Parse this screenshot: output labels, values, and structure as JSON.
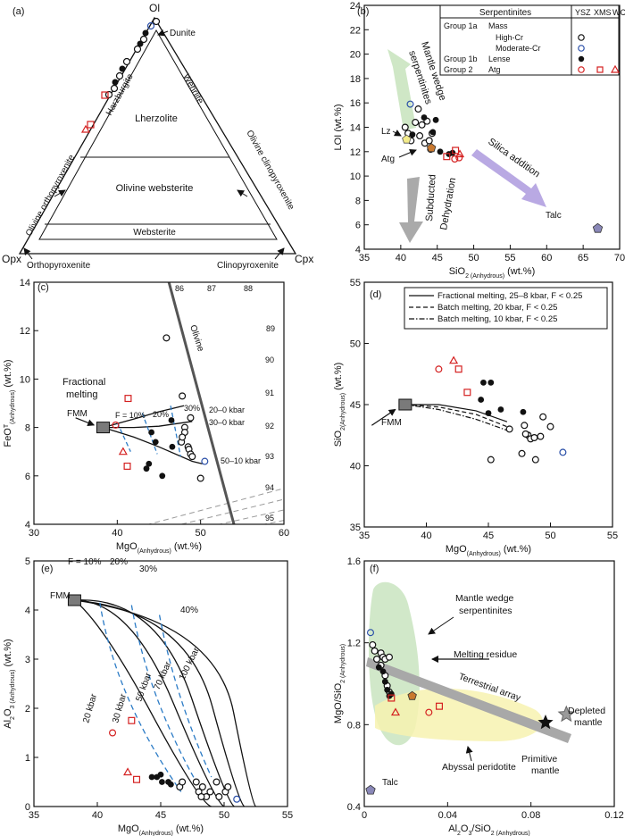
{
  "panels": {
    "a": {
      "label": "(a)",
      "apex_top": "Ol",
      "apex_left": "Opx",
      "apex_right": "Cpx",
      "fields": {
        "dunite": "Dunite",
        "harzburgite": "Harzburgite",
        "wehrlite": "Wehrlite",
        "lherzolite": "Lherzolite",
        "ol_websterite": "Olivine websterite",
        "websterite": "Websterite",
        "ol_orthopyroxenite": "Olivine orthopyroxenite",
        "ol_clinopyroxenite": "Olivine clinopyroxenite",
        "orthopyroxenite": "Orthopyroxenite",
        "clinopyroxenite": "Clinopyroxenite"
      }
    },
    "b": {
      "label": "(b)",
      "ylabel": "LOI (wt.%)",
      "xlabel_main": "SiO",
      "xlabel_sub": "2 (Anhydrous)",
      "xlabel_unit": " (wt.%)",
      "legend": {
        "col_header": "Serpentinites",
        "col_ysz": "YSZ",
        "col_xms": "XMS",
        "col_wcw": "WCW",
        "rows": [
          {
            "group": "Group 1a",
            "type": "Mass"
          },
          {
            "group": "",
            "type": "High-Cr"
          },
          {
            "group": "",
            "type": "Moderate-Cr"
          },
          {
            "group": "Group 1b",
            "type": "Lense"
          },
          {
            "group": "Group 2",
            "type": "Atg"
          }
        ]
      },
      "annotations": {
        "mantle_wedge": "Mantle wedge",
        "serpentinites": "serpentinites",
        "subducted": "Subducted",
        "dehydration": "Dehydration",
        "silica": "Silica addition",
        "lz": "Lz",
        "atg": "Atg",
        "talc": "Talc"
      }
    },
    "c": {
      "label": "(c)",
      "ylabel_main": "FeO",
      "ylabel_sup": "T",
      "ylabel_sub": "(Anhydrous)",
      "ylabel_unit": " (wt.%)",
      "xlabel_main": "MgO",
      "xlabel_sub": "(Anhydrous)",
      "xlabel_unit": " (wt.%)",
      "annotations": {
        "fractional": "Fractional",
        "melting": "melting",
        "fmm": "FMM",
        "olivine": "Olivine",
        "f10": "F = 10%",
        "p20": "20%",
        "p30": "30%",
        "k20": "20–0 kbar",
        "k30": "30–0 kbar",
        "k50": "50–10 kbar"
      },
      "mg_numbers": [
        "86",
        "87",
        "88",
        "89",
        "90",
        "91",
        "92",
        "93",
        "94",
        "95"
      ]
    },
    "d": {
      "label": "(d)",
      "ylabel_main": "SiO",
      "ylabel_sub": "2(Anhydrous)",
      "ylabel_unit": " (wt.%)",
      "xlabel_main": "MgO",
      "xlabel_sub": "(Anhydrous)",
      "xlabel_unit": " (wt.%)",
      "legend": [
        "Fractional melting, 25–8 kbar, F < 0.25",
        "Batch melting, 20 kbar, F < 0.25",
        "Batch melting, 10 kbar, F < 0.25"
      ],
      "annotations": {
        "fmm": "FMM"
      }
    },
    "e": {
      "label": "(e)",
      "ylabel_main": "Al",
      "ylabel_sub1": "2",
      "ylabel_mid": "O",
      "ylabel_sub2": "3 (Anhydrous)",
      "ylabel_unit": " (wt.%)",
      "xlabel_main": "MgO",
      "xlabel_sub": "(Anhydrous)",
      "xlabel_unit": " (wt.%)",
      "annotations": {
        "fmm": "FMM",
        "f10": "F = 10%",
        "p20": "20%",
        "p30": "30%",
        "p40": "40%",
        "k20": "20 kbar",
        "k30": "30 kbar",
        "k50": "50 kbar",
        "k70": "70 kbar",
        "k100": "100 kbar"
      }
    },
    "f": {
      "label": "(f)",
      "ylabel": "MgO/SiO",
      "ylabel_sub": "2 (Anhydrous)",
      "xlabel": "Al",
      "xlabel_sub": "2",
      "xlabel_mid": "O",
      "xlabel_sub2": "3",
      "xlabel_rest": "/SiO",
      "xlabel_sub3": "2 (Anhydrous)",
      "annotations": {
        "mantle_wedge": "Mantle wedge",
        "serpentinites": "serpentinites",
        "melting_residue": "Melting residue",
        "terrestrial": "Terrestrial array",
        "depleted": "Depleted",
        "mantle": "mantle",
        "primitive": "Primitive",
        "primitive_mantle": "mantle",
        "abyssal": "Abyssal peridotite",
        "talc": "Talc"
      }
    }
  },
  "colors": {
    "ysz": "#d42020",
    "high_cr": "#111111",
    "moderate_cr": "#2a4fa8",
    "lense": "#111111",
    "mantle_wedge_field": "#cfe7c6",
    "abyssal_field": "#f7f2b0",
    "silica_arrow": "#b9a9e3",
    "talc": "#8a88b8"
  },
  "chart_data": [
    {
      "panel": "b",
      "type": "scatter",
      "xlim": [
        35,
        70
      ],
      "ylim": [
        4,
        24
      ],
      "xticks": [
        "35",
        "40",
        "45",
        "50",
        "55",
        "60",
        "65",
        "70"
      ],
      "yticks": [
        "4",
        "6",
        "8",
        "10",
        "12",
        "14",
        "16",
        "18",
        "20",
        "22",
        "24"
      ],
      "series": [
        {
          "name": "High-Cr",
          "points": [
            [
              40.6,
              14.0
            ],
            [
              41.0,
              13.5
            ],
            [
              41.4,
              12.9
            ],
            [
              42.0,
              14.4
            ],
            [
              42.4,
              15.5
            ],
            [
              42.6,
              13.3
            ],
            [
              42.9,
              14.2
            ],
            [
              43.3,
              12.7
            ],
            [
              43.6,
              14.5
            ],
            [
              43.9,
              12.9
            ],
            [
              44.3,
              13.5
            ],
            [
              44.1,
              12.2
            ]
          ]
        },
        {
          "name": "Moderate-Cr",
          "points": [
            [
              41.3,
              15.9
            ]
          ]
        },
        {
          "name": "Lense",
          "points": [
            [
              41.6,
              13.4
            ],
            [
              43.2,
              14.8
            ],
            [
              44.8,
              14.6
            ],
            [
              45.4,
              12.0
            ],
            [
              46.6,
              11.8
            ],
            [
              47.1,
              11.9
            ],
            [
              44.4,
              13.6
            ]
          ]
        },
        {
          "name": "Atg YSZ",
          "points": [
            [
              47.4,
              11.4
            ],
            [
              48.0,
              11.5
            ]
          ]
        },
        {
          "name": "Atg XMS",
          "points": [
            [
              46.3,
              11.6
            ],
            [
              47.5,
              12.1
            ]
          ]
        },
        {
          "name": "Atg WCW",
          "points": [
            [
              48.1,
              11.8
            ]
          ]
        },
        {
          "name": "Lz",
          "points": [
            [
              40.8,
              13.0
            ]
          ]
        },
        {
          "name": "Atg",
          "points": [
            [
              44.2,
              12.3
            ]
          ]
        },
        {
          "name": "Talc",
          "points": [
            [
              67.0,
              5.7
            ]
          ]
        }
      ]
    },
    {
      "panel": "c",
      "type": "scatter",
      "xlim": [
        30,
        60
      ],
      "ylim": [
        4,
        14
      ],
      "xticks": [
        "30",
        "40",
        "50",
        "60"
      ],
      "yticks": [
        "4",
        "6",
        "8",
        "10",
        "12",
        "14"
      ],
      "fmm": [
        38.3,
        8.0
      ],
      "series": [
        {
          "name": "High-Cr",
          "points": [
            [
              45.9,
              11.7
            ],
            [
              47.8,
              9.3
            ],
            [
              48.1,
              8.0
            ],
            [
              48.1,
              7.8
            ],
            [
              48.8,
              8.4
            ],
            [
              47.7,
              7.4
            ],
            [
              48.5,
              7.2
            ],
            [
              48.6,
              7.1
            ],
            [
              48.8,
              6.9
            ],
            [
              49.0,
              6.8
            ],
            [
              47.8,
              7.6
            ],
            [
              50.0,
              5.9
            ]
          ]
        },
        {
          "name": "Moderate-Cr",
          "points": [
            [
              50.5,
              6.6
            ]
          ]
        },
        {
          "name": "Lense",
          "points": [
            [
              43.8,
              6.5
            ],
            [
              43.5,
              6.3
            ],
            [
              44.1,
              7.8
            ],
            [
              44.6,
              7.4
            ],
            [
              45.4,
              6.0
            ],
            [
              46.6,
              7.2
            ],
            [
              46.5,
              8.3
            ]
          ]
        },
        {
          "name": "Atg YSZ",
          "points": [
            [
              39.8,
              8.1
            ]
          ]
        },
        {
          "name": "Atg XMS",
          "points": [
            [
              41.3,
              9.2
            ],
            [
              41.2,
              6.4
            ]
          ]
        },
        {
          "name": "Atg WCW",
          "points": [
            [
              40.7,
              7.0
            ]
          ]
        }
      ]
    },
    {
      "panel": "d",
      "type": "scatter",
      "xlim": [
        35,
        55
      ],
      "ylim": [
        35,
        55
      ],
      "xticks": [
        "35",
        "40",
        "45",
        "50",
        "55"
      ],
      "yticks": [
        "35",
        "40",
        "45",
        "50",
        "55"
      ],
      "fmm": [
        38.3,
        45.0
      ],
      "series": [
        {
          "name": "High-Cr",
          "points": [
            [
              45.2,
              40.5
            ],
            [
              46.7,
              43.0
            ],
            [
              47.7,
              41.0
            ],
            [
              47.9,
              43.3
            ],
            [
              48.2,
              42.5
            ],
            [
              48.4,
              42.2
            ],
            [
              48.7,
              42.3
            ],
            [
              49.2,
              42.4
            ],
            [
              49.4,
              44.0
            ],
            [
              48.8,
              40.5
            ],
            [
              50.0,
              43.2
            ],
            [
              48.0,
              42.6
            ]
          ]
        },
        {
          "name": "Moderate-Cr",
          "points": [
            [
              51.0,
              41.1
            ]
          ]
        },
        {
          "name": "Lense",
          "points": [
            [
              44.4,
              45.4
            ],
            [
              44.6,
              46.8
            ],
            [
              45.2,
              46.8
            ],
            [
              45.0,
              44.3
            ],
            [
              47.8,
              44.4
            ],
            [
              46.0,
              44.6
            ]
          ]
        },
        {
          "name": "Atg YSZ",
          "points": [
            [
              41.0,
              47.9
            ]
          ]
        },
        {
          "name": "Atg XMS",
          "points": [
            [
              42.6,
              47.9
            ],
            [
              43.3,
              46.0
            ]
          ]
        },
        {
          "name": "Atg WCW",
          "points": [
            [
              42.2,
              48.6
            ]
          ]
        }
      ]
    },
    {
      "panel": "e",
      "type": "scatter",
      "xlim": [
        35,
        55
      ],
      "ylim": [
        0,
        5
      ],
      "xticks": [
        "35",
        "40",
        "45",
        "50",
        "55"
      ],
      "yticks": [
        "0",
        "1",
        "2",
        "3",
        "4",
        "5"
      ],
      "fmm": [
        38.2,
        4.2
      ],
      "series": [
        {
          "name": "High-Cr",
          "points": [
            [
              46.5,
              0.4
            ],
            [
              47.8,
              0.5
            ],
            [
              48.0,
              0.3
            ],
            [
              48.3,
              0.4
            ],
            [
              48.6,
              0.2
            ],
            [
              48.9,
              0.3
            ],
            [
              49.4,
              0.5
            ],
            [
              49.6,
              0.2
            ],
            [
              50.1,
              0.3
            ],
            [
              50.3,
              0.4
            ],
            [
              48.2,
              0.2
            ],
            [
              46.7,
              0.5
            ]
          ]
        },
        {
          "name": "Moderate-Cr",
          "points": [
            [
              51.0,
              0.15
            ]
          ]
        },
        {
          "name": "Lense",
          "points": [
            [
              44.3,
              0.6
            ],
            [
              44.7,
              0.6
            ],
            [
              45.0,
              0.65
            ],
            [
              45.6,
              0.5
            ],
            [
              45.8,
              0.45
            ],
            [
              45.1,
              0.5
            ]
          ]
        },
        {
          "name": "Atg YSZ",
          "points": [
            [
              41.2,
              1.5
            ]
          ]
        },
        {
          "name": "Atg XMS",
          "points": [
            [
              42.7,
              1.75
            ],
            [
              43.1,
              0.55
            ]
          ]
        },
        {
          "name": "Atg WCW",
          "points": [
            [
              42.4,
              0.7
            ]
          ]
        }
      ]
    },
    {
      "panel": "f",
      "type": "scatter",
      "xlim": [
        0,
        0.12
      ],
      "ylim": [
        0.4,
        1.6
      ],
      "xticks": [
        "0",
        "0.04",
        "0.08",
        "0.12"
      ],
      "yticks": [
        "0.4",
        "0.8",
        "1.2",
        "1.6"
      ],
      "series": [
        {
          "name": "High-Cr",
          "points": [
            [
              0.004,
              1.19
            ],
            [
              0.005,
              1.16
            ],
            [
              0.006,
              1.12
            ],
            [
              0.008,
              1.15
            ],
            [
              0.009,
              1.13
            ],
            [
              0.01,
              1.12
            ],
            [
              0.012,
              1.13
            ],
            [
              0.008,
              1.09
            ],
            [
              0.01,
              1.04
            ],
            [
              0.011,
              0.99
            ],
            [
              0.012,
              0.96
            ]
          ]
        },
        {
          "name": "Moderate-Cr",
          "points": [
            [
              0.003,
              1.25
            ]
          ]
        },
        {
          "name": "Lense",
          "points": [
            [
              0.007,
              1.08
            ],
            [
              0.01,
              1.01
            ],
            [
              0.011,
              0.97
            ],
            [
              0.009,
              1.06
            ],
            [
              0.013,
              0.95
            ],
            [
              0.012,
              0.94
            ]
          ]
        },
        {
          "name": "Atg YSZ",
          "points": [
            [
              0.031,
              0.86
            ]
          ]
        },
        {
          "name": "Atg XMS",
          "points": [
            [
              0.013,
              0.93
            ],
            [
              0.036,
              0.89
            ]
          ]
        },
        {
          "name": "Atg WCW",
          "points": [
            [
              0.015,
              0.86
            ]
          ]
        },
        {
          "name": "Atg",
          "points": [
            [
              0.023,
              0.94
            ]
          ]
        },
        {
          "name": "Talc",
          "points": [
            [
              0.003,
              0.48
            ]
          ]
        },
        {
          "name": "Primitive mantle",
          "points": [
            [
              0.087,
              0.81
            ]
          ]
        },
        {
          "name": "Depleted mantle",
          "points": [
            [
              0.097,
              0.85
            ]
          ]
        }
      ]
    }
  ]
}
